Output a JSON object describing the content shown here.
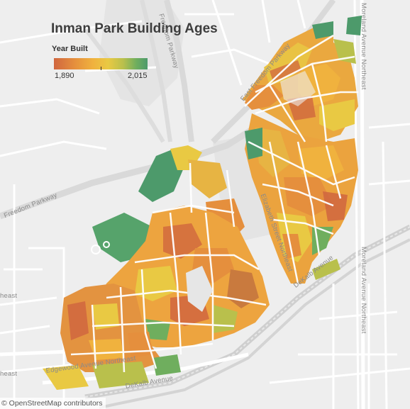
{
  "map": {
    "title": "Inman Park Building Ages",
    "legend": {
      "title": "Year Built",
      "min_label": "1,890",
      "max_label": "2,015",
      "min_value": 1890,
      "max_value": 2015,
      "colors": [
        "#d0663f",
        "#e58f3d",
        "#f0b23e",
        "#e9c943",
        "#b9c04c",
        "#6fae5e",
        "#4d9a6b"
      ]
    },
    "streets": {
      "freedom_parkway_top": "Freedom Parkway",
      "freedom_parkway_left": "Freedom Parkway",
      "east_freedom_parkway": "East Freedom Parkway",
      "moreland_top": "Moreland Avenue Northeast",
      "moreland_bottom": "Moreland Avenue Northeast",
      "elizabeth_street": "Elizabeth Street Northeast",
      "dekalb_right": "DeKalb Avenue",
      "dekalb_bottom": "DeKalb Avenue",
      "edgewood": "Edgewood Avenue Northeast",
      "northeast_left_1": "heast",
      "northeast_left_2": "heast"
    },
    "attribution": "© OpenStreetMap contributors",
    "basemap_colors": {
      "background": "#eeeeee",
      "road": "#ffffff",
      "highway": "#d8d8d8",
      "park": "#e3e3e3",
      "rail": "#c8c8c8"
    }
  }
}
